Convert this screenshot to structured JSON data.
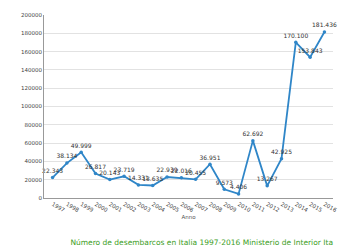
{
  "chart_data": {
    "type": "line",
    "title": "Número de desembarcos en Italia 1997-2016 Ministerio de Interior Ita",
    "x_label": "Anno",
    "categories": [
      "1997",
      "1998",
      "1999",
      "2000",
      "2001",
      "2002",
      "2003",
      "2004",
      "2005",
      "2006",
      "2007",
      "2008",
      "2009",
      "2010",
      "2011",
      "2012",
      "2013",
      "2014",
      "2015",
      "2016"
    ],
    "values": [
      22343,
      38134,
      49999,
      26817,
      20143,
      23719,
      14331,
      13635,
      22939,
      22016,
      20455,
      36951,
      9573,
      4406,
      62692,
      13267,
      42925,
      170100,
      153843,
      181436
    ],
    "value_labels": [
      "22.343",
      "38.134",
      "49.999",
      "26.817",
      "20.143",
      "23.719",
      "14.331",
      "13.635",
      "22.939",
      "22.016",
      "20.455",
      "36.951",
      "9.573",
      "4.406",
      "62.692",
      "13.267",
      "42.925",
      "170.100",
      "153.843",
      "181.436"
    ],
    "data_labels": true,
    "color": "#2f86c8",
    "title_color": "#3a9d23",
    "marker": "circle",
    "ylim": [
      0,
      200000
    ],
    "yticks": [
      0,
      20000,
      40000,
      60000,
      80000,
      100000,
      120000,
      140000,
      160000,
      180000,
      200000
    ],
    "grid": true
  }
}
